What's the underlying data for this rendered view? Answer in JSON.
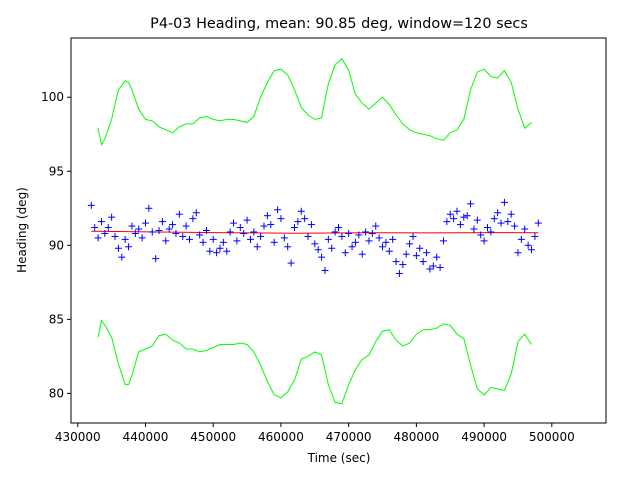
{
  "chart_data": {
    "type": "scatter",
    "title": "P4-03 Heading, mean: 90.85 deg, window=120 secs",
    "xlabel": "Time (sec)",
    "ylabel": "Heading (deg)",
    "xlim": [
      429000,
      508000
    ],
    "ylim": [
      78,
      104
    ],
    "xticks": [
      430000,
      440000,
      450000,
      460000,
      470000,
      480000,
      490000,
      500000
    ],
    "yticks": [
      80,
      85,
      90,
      95,
      100
    ],
    "grid": false,
    "series": [
      {
        "kind": "points",
        "marker": "+",
        "color": "#0000ff",
        "points": [
          [
            432000,
            92.7
          ],
          [
            432500,
            91.2
          ],
          [
            433000,
            90.5
          ],
          [
            433500,
            91.6
          ],
          [
            434000,
            90.8
          ],
          [
            434500,
            91.2
          ],
          [
            435000,
            91.9
          ],
          [
            435500,
            90.6
          ],
          [
            436000,
            89.8
          ],
          [
            436500,
            89.2
          ],
          [
            437000,
            90.4
          ],
          [
            437500,
            89.9
          ],
          [
            438000,
            91.3
          ],
          [
            438500,
            90.8
          ],
          [
            439000,
            91.1
          ],
          [
            439500,
            90.5
          ],
          [
            440000,
            91.5
          ],
          [
            440500,
            92.5
          ],
          [
            441000,
            90.9
          ],
          [
            441500,
            89.1
          ],
          [
            442000,
            91.0
          ],
          [
            442500,
            91.6
          ],
          [
            443000,
            90.3
          ],
          [
            443500,
            91.1
          ],
          [
            444000,
            91.4
          ],
          [
            444500,
            90.8
          ],
          [
            445000,
            92.1
          ],
          [
            445500,
            90.6
          ],
          [
            446000,
            91.3
          ],
          [
            446500,
            90.4
          ],
          [
            447000,
            91.8
          ],
          [
            447500,
            92.2
          ],
          [
            448000,
            90.7
          ],
          [
            448500,
            90.2
          ],
          [
            449000,
            91.0
          ],
          [
            449500,
            89.6
          ],
          [
            450000,
            90.4
          ],
          [
            450500,
            89.5
          ],
          [
            451000,
            89.8
          ],
          [
            451500,
            90.2
          ],
          [
            452000,
            89.6
          ],
          [
            452500,
            90.9
          ],
          [
            453000,
            91.5
          ],
          [
            453500,
            90.3
          ],
          [
            454000,
            91.2
          ],
          [
            454500,
            90.8
          ],
          [
            455000,
            91.7
          ],
          [
            455500,
            90.4
          ],
          [
            456000,
            90.9
          ],
          [
            456500,
            89.9
          ],
          [
            457000,
            90.6
          ],
          [
            457500,
            91.3
          ],
          [
            458000,
            92.0
          ],
          [
            458500,
            91.4
          ],
          [
            459000,
            90.2
          ],
          [
            459500,
            92.4
          ],
          [
            460000,
            91.8
          ],
          [
            460500,
            90.5
          ],
          [
            461000,
            89.9
          ],
          [
            461500,
            88.8
          ],
          [
            462000,
            91.2
          ],
          [
            462500,
            91.6
          ],
          [
            463000,
            92.3
          ],
          [
            463500,
            91.8
          ],
          [
            464000,
            90.6
          ],
          [
            464500,
            91.4
          ],
          [
            465000,
            90.1
          ],
          [
            465500,
            89.7
          ],
          [
            466000,
            89.2
          ],
          [
            466500,
            88.3
          ],
          [
            467000,
            90.4
          ],
          [
            467500,
            89.8
          ],
          [
            468000,
            90.9
          ],
          [
            468500,
            91.2
          ],
          [
            469000,
            90.6
          ],
          [
            469500,
            89.5
          ],
          [
            470000,
            90.8
          ],
          [
            470500,
            89.9
          ],
          [
            471000,
            90.2
          ],
          [
            471500,
            90.7
          ],
          [
            472000,
            89.4
          ],
          [
            472500,
            90.9
          ],
          [
            473000,
            90.3
          ],
          [
            473500,
            90.8
          ],
          [
            474000,
            91.3
          ],
          [
            474500,
            90.5
          ],
          [
            475000,
            89.9
          ],
          [
            475500,
            90.2
          ],
          [
            476000,
            89.6
          ],
          [
            476500,
            90.4
          ],
          [
            477000,
            88.9
          ],
          [
            477500,
            88.1
          ],
          [
            478000,
            88.7
          ],
          [
            478500,
            89.4
          ],
          [
            479000,
            90.1
          ],
          [
            479500,
            90.6
          ],
          [
            480000,
            89.3
          ],
          [
            480500,
            89.8
          ],
          [
            481000,
            88.9
          ],
          [
            481500,
            89.5
          ],
          [
            482000,
            88.4
          ],
          [
            482500,
            88.6
          ],
          [
            483000,
            89.2
          ],
          [
            483500,
            88.5
          ],
          [
            484000,
            90.3
          ],
          [
            484500,
            91.6
          ],
          [
            485000,
            92.1
          ],
          [
            485500,
            91.8
          ],
          [
            486000,
            92.3
          ],
          [
            486500,
            91.4
          ],
          [
            487000,
            91.9
          ],
          [
            487500,
            92.0
          ],
          [
            488000,
            92.8
          ],
          [
            488500,
            91.1
          ],
          [
            489000,
            91.7
          ],
          [
            489500,
            90.7
          ],
          [
            490000,
            90.3
          ],
          [
            490500,
            91.2
          ],
          [
            491000,
            90.9
          ],
          [
            491500,
            91.8
          ],
          [
            492000,
            92.2
          ],
          [
            492500,
            91.5
          ],
          [
            493000,
            92.9
          ],
          [
            493500,
            91.6
          ],
          [
            494000,
            92.1
          ],
          [
            494500,
            91.3
          ],
          [
            495000,
            89.5
          ],
          [
            495500,
            90.4
          ],
          [
            496000,
            91.1
          ],
          [
            496500,
            90.0
          ],
          [
            497000,
            89.7
          ],
          [
            497500,
            90.6
          ],
          [
            498000,
            91.5
          ]
        ]
      },
      {
        "kind": "line",
        "color": "#ff0000",
        "x": [
          432000,
          442000,
          452000,
          462000,
          472000,
          482000,
          492000,
          498000
        ],
        "values": [
          90.95,
          90.9,
          90.85,
          90.82,
          90.85,
          90.84,
          90.86,
          90.85
        ]
      },
      {
        "kind": "line",
        "color": "#00ff00",
        "x": [
          433000,
          433500,
          434000,
          435000,
          436000,
          437000,
          437500,
          438000,
          439000,
          440000,
          441000,
          442000,
          443000,
          444000,
          445000,
          446000,
          447000,
          448000,
          449000,
          450000,
          451000,
          452000,
          453000,
          454000,
          455000,
          456000,
          457000,
          458000,
          459000,
          460000,
          461000,
          462000,
          463000,
          464000,
          465000,
          466000,
          467000,
          468000,
          469000,
          470000,
          471000,
          472000,
          473000,
          474000,
          475000,
          476000,
          477000,
          478000,
          479000,
          480000,
          481000,
          482000,
          483000,
          484000,
          485000,
          486000,
          487000,
          488000,
          489000,
          490000,
          491000,
          492000,
          493000,
          494000,
          495000,
          496000,
          497000
        ],
        "values": [
          97.9,
          96.8,
          97.2,
          98.5,
          100.5,
          101.1,
          101.0,
          100.5,
          99.2,
          98.5,
          98.4,
          98.0,
          97.8,
          97.6,
          98.0,
          98.2,
          98.2,
          98.6,
          98.7,
          98.5,
          98.4,
          98.5,
          98.5,
          98.4,
          98.3,
          98.7,
          100.0,
          101.0,
          101.8,
          101.9,
          101.5,
          100.5,
          99.3,
          98.8,
          98.5,
          98.6,
          100.9,
          102.2,
          102.6,
          101.8,
          100.2,
          99.6,
          99.2,
          99.6,
          100.0,
          99.5,
          98.8,
          98.2,
          97.8,
          97.6,
          97.5,
          97.4,
          97.2,
          97.1,
          97.6,
          97.8,
          98.5,
          100.5,
          101.7,
          101.9,
          101.4,
          101.3,
          101.8,
          101.0,
          99.2,
          97.9,
          98.3
        ]
      },
      {
        "kind": "line",
        "color": "#00ff00",
        "x": [
          433000,
          433500,
          434000,
          435000,
          436000,
          437000,
          437500,
          438000,
          439000,
          440000,
          441000,
          442000,
          443000,
          444000,
          445000,
          446000,
          447000,
          448000,
          449000,
          450000,
          451000,
          452000,
          453000,
          454000,
          455000,
          456000,
          457000,
          458000,
          459000,
          460000,
          461000,
          462000,
          463000,
          464000,
          465000,
          466000,
          467000,
          468000,
          469000,
          470000,
          471000,
          472000,
          473000,
          474000,
          475000,
          476000,
          477000,
          478000,
          479000,
          480000,
          481000,
          482000,
          483000,
          484000,
          485000,
          486000,
          487000,
          488000,
          489000,
          490000,
          491000,
          492000,
          493000,
          494000,
          495000,
          496000,
          497000
        ],
        "values": [
          83.8,
          84.9,
          84.6,
          83.8,
          82.0,
          80.6,
          80.6,
          81.2,
          82.8,
          83.0,
          83.2,
          83.9,
          84.0,
          83.6,
          83.4,
          83.0,
          83.0,
          82.8,
          82.9,
          83.1,
          83.3,
          83.3,
          83.3,
          83.4,
          83.3,
          82.8,
          81.9,
          80.8,
          79.9,
          79.7,
          80.1,
          80.9,
          82.3,
          82.5,
          82.8,
          82.6,
          80.6,
          79.4,
          79.3,
          80.6,
          81.6,
          82.3,
          82.6,
          83.5,
          84.2,
          84.3,
          83.6,
          83.2,
          83.4,
          84.0,
          84.3,
          84.3,
          84.4,
          84.7,
          84.6,
          84.0,
          83.7,
          81.9,
          80.3,
          79.9,
          80.4,
          80.3,
          80.2,
          81.3,
          83.5,
          84.0,
          83.3
        ]
      }
    ]
  }
}
